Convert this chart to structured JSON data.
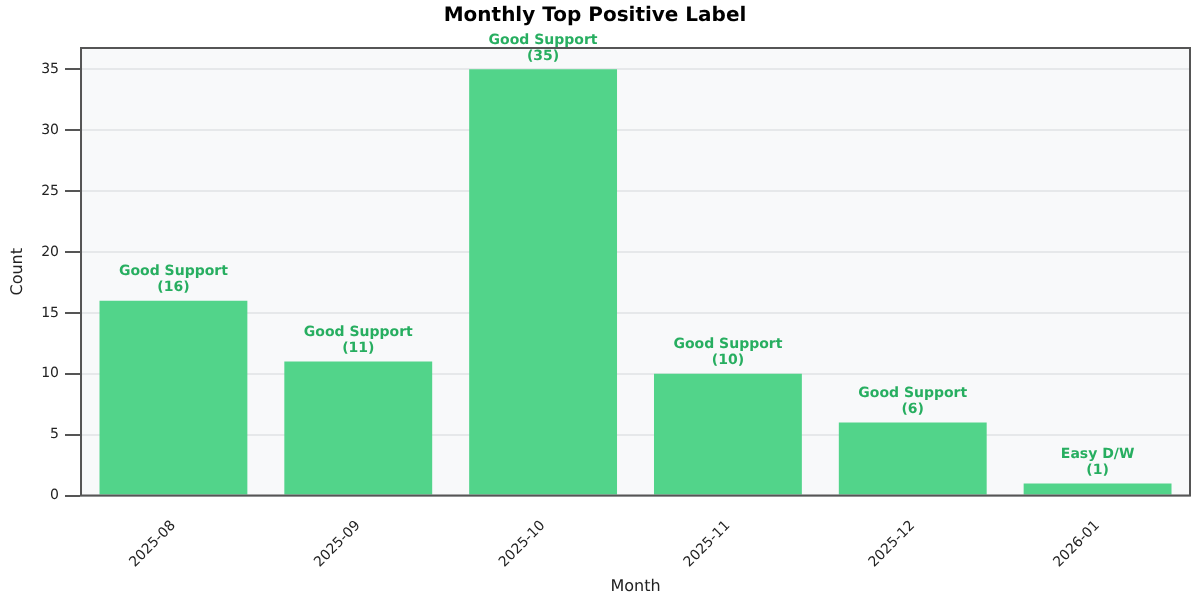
{
  "chart_data": {
    "type": "bar",
    "title": "Monthly Top Positive Label",
    "xlabel": "Month",
    "ylabel": "Count",
    "categories": [
      "2025-08",
      "2025-09",
      "2025-10",
      "2025-11",
      "2025-12",
      "2026-01"
    ],
    "values": [
      16,
      11,
      35,
      10,
      6,
      1
    ],
    "color": "#52d48a",
    "value_labels": [
      "Good Support\n(16)",
      "Good Support\n(11)",
      "Good Support\n(35)",
      "Good Support\n(10)",
      "Good Support\n(6)",
      "Easy D/W\n(1)"
    ],
    "ylim": [
      0,
      36.75
    ],
    "yticks": [
      0,
      5,
      10,
      15,
      20,
      25,
      30,
      35
    ],
    "grid": "y",
    "legend": false
  }
}
